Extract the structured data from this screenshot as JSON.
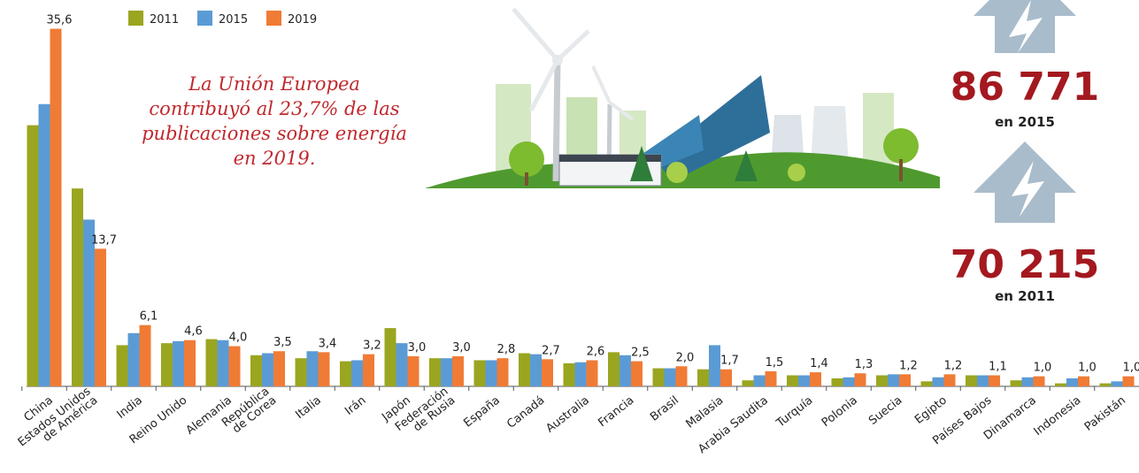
{
  "chart_data": {
    "type": "bar",
    "legend_position": "top-left",
    "categories": [
      "China",
      "Estados Unidos\nde América",
      "India",
      "Reino Unido",
      "Alemania",
      "República\nde Corea",
      "Italia",
      "Irán",
      "Japón",
      "Federación\nde Rusia",
      "España",
      "Canadá",
      "Australia",
      "Francia",
      "Brasil",
      "Malasia",
      "Arabia Saudita",
      "Turquía",
      "Polonia",
      "Suecia",
      "Egipto",
      "Países Bajos",
      "Dinamarca",
      "Indonesia",
      "Pakistán"
    ],
    "series": [
      {
        "name": "2011",
        "color": "#9aa61f",
        "values": [
          26.0,
          19.7,
          4.1,
          4.3,
          4.7,
          3.1,
          2.8,
          2.5,
          5.8,
          2.8,
          2.6,
          3.3,
          2.3,
          3.4,
          1.8,
          1.7,
          0.6,
          1.1,
          0.8,
          1.1,
          0.5,
          1.1,
          0.6,
          0.3,
          0.3
        ]
      },
      {
        "name": "2015",
        "color": "#5b9bd5",
        "values": [
          28.1,
          16.6,
          5.3,
          4.5,
          4.6,
          3.3,
          3.5,
          2.6,
          4.3,
          2.8,
          2.6,
          3.2,
          2.4,
          3.1,
          1.8,
          4.1,
          1.1,
          1.1,
          0.9,
          1.2,
          0.9,
          1.1,
          0.9,
          0.8,
          0.5
        ]
      },
      {
        "name": "2019",
        "color": "#f07b35",
        "values": [
          35.6,
          13.7,
          6.1,
          4.6,
          4.0,
          3.5,
          3.4,
          3.2,
          3.0,
          3.0,
          2.8,
          2.7,
          2.6,
          2.5,
          2.0,
          1.7,
          1.5,
          1.4,
          1.3,
          1.2,
          1.2,
          1.1,
          1.0,
          1.0,
          1.0
        ],
        "value_labels": [
          "35,6",
          "13,7",
          "6,1",
          "4,6",
          "4,0",
          "3,5",
          "3,4",
          "3,2",
          "3,0",
          "3,0",
          "2,8",
          "2,7",
          "2,6",
          "2,5",
          "2,0",
          "1,7",
          "1,5",
          "1,4",
          "1,3",
          "1,2",
          "1,2",
          "1,1",
          "1,0",
          "1,0",
          "1,0"
        ]
      }
    ],
    "ylim": [
      0,
      36
    ]
  },
  "annotations": {
    "eu_note": [
      "La Unión Europea",
      "contribuyó al 23,7% de las",
      "publicaciones sobre energía",
      "en 2019."
    ],
    "stats": [
      {
        "label": "86 771",
        "caption": "en 2015"
      },
      {
        "label": "70 215",
        "caption": "en 2011"
      }
    ]
  }
}
